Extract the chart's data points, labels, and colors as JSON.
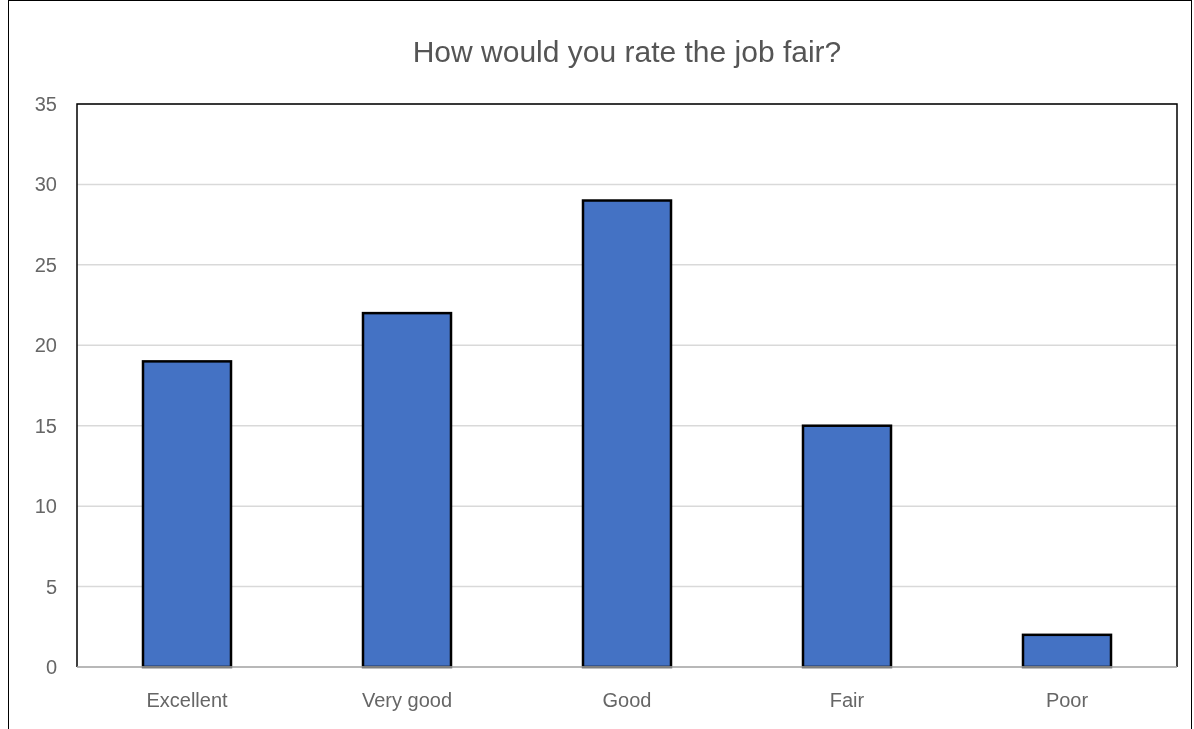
{
  "chart_data": {
    "type": "bar",
    "title": "How would you rate the job fair?",
    "categories": [
      "Excellent",
      "Very good",
      "Good",
      "Fair",
      "Poor"
    ],
    "values": [
      19,
      22,
      29,
      15,
      2
    ],
    "color": "#4472c4",
    "ylim": [
      0,
      35
    ],
    "yticks": [
      0,
      5,
      10,
      15,
      20,
      25,
      30,
      35
    ],
    "grid": "y"
  }
}
